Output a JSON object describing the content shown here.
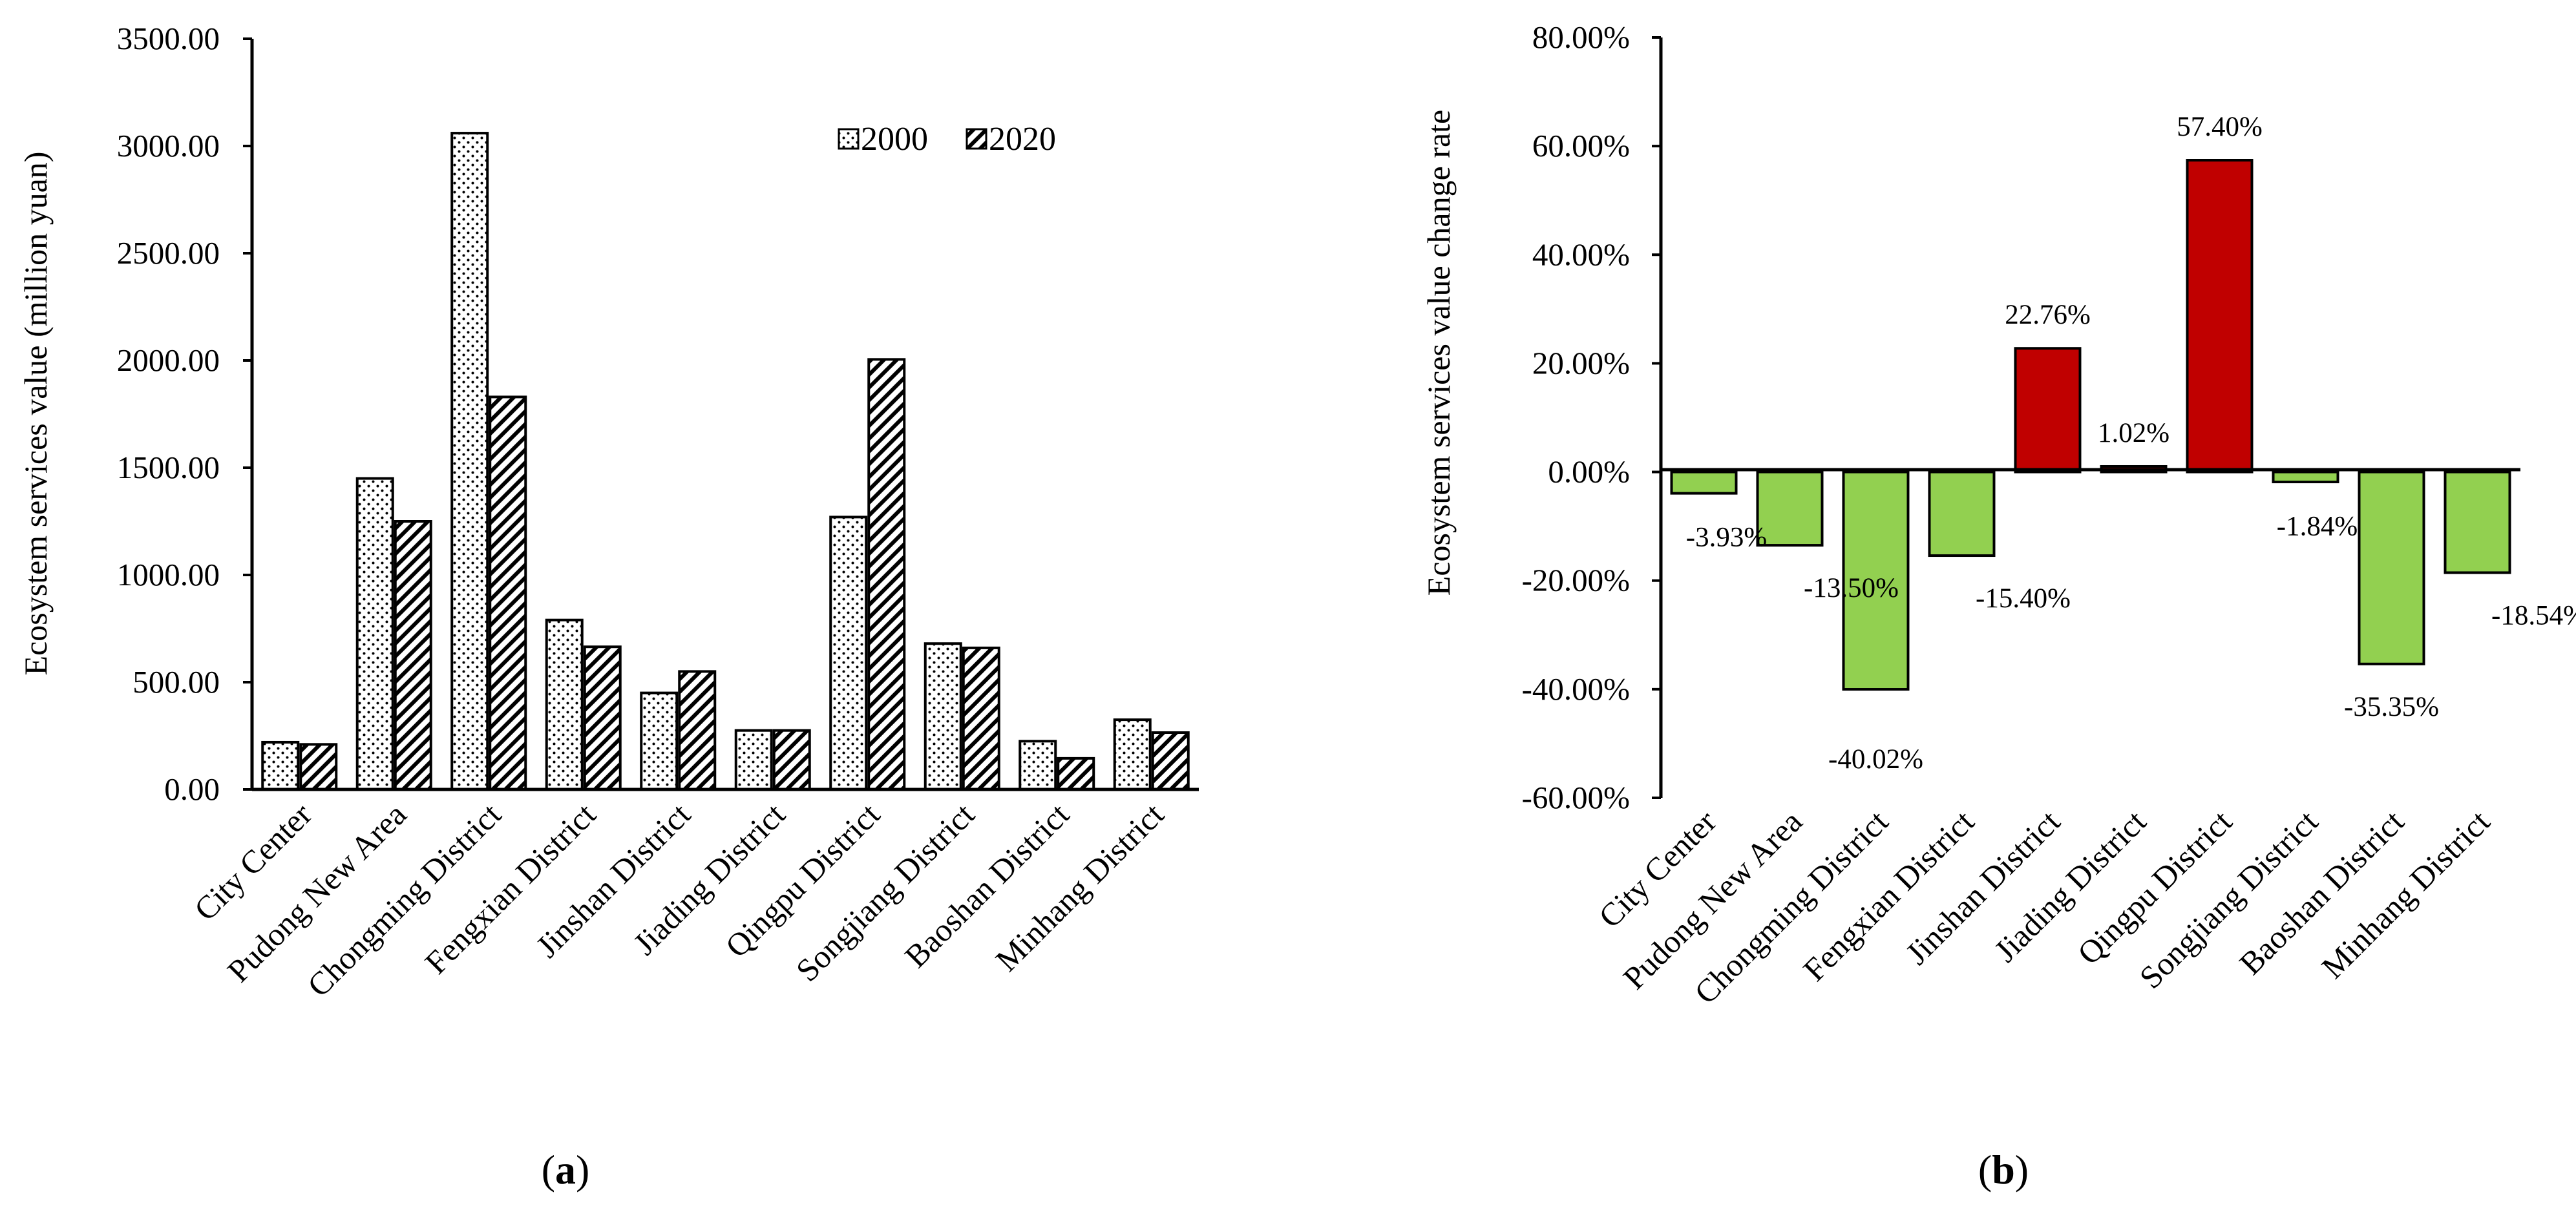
{
  "colors": {
    "positive": "#c00000",
    "negative": "#92d050",
    "axis": "#000000",
    "bar_bg": "#ffffff"
  },
  "chart_data": [
    {
      "type": "bar",
      "panel": "a",
      "panel_label": "a",
      "ylabel": "Ecosystem services value (million yuan)",
      "xlabel": "",
      "ylim": [
        0,
        3500
      ],
      "yticks": [
        "0.00",
        "500.00",
        "1000.00",
        "1500.00",
        "2000.00",
        "2500.00",
        "3000.00",
        "3500.00"
      ],
      "yticks_values": [
        0,
        500,
        1000,
        1500,
        2000,
        2500,
        3000,
        3500
      ],
      "grid": false,
      "legend_position": "top-right",
      "categories": [
        "City Center",
        "Pudong New Area",
        "Chongming District",
        "Fengxian District",
        "Jinshan District",
        "Jiading District",
        "Qingpu District",
        "Songjiang District",
        "Baoshan District",
        "Minhang District"
      ],
      "series": [
        {
          "name": "2000",
          "pattern": "dots",
          "values": [
            220,
            1450,
            3060,
            790,
            450,
            275,
            1270,
            680,
            225,
            325
          ]
        },
        {
          "name": "2020",
          "pattern": "diagonal",
          "values": [
            210,
            1250,
            1830,
            665,
            550,
            275,
            2005,
            660,
            145,
            265
          ]
        }
      ]
    },
    {
      "type": "bar",
      "panel": "b",
      "panel_label": "b",
      "ylabel": "Ecosystem services value change rate",
      "xlabel": "",
      "ylim": [
        -60,
        80
      ],
      "yticks": [
        "-60.00%",
        "-40.00%",
        "-20.00%",
        "0.00%",
        "20.00%",
        "40.00%",
        "60.00%",
        "80.00%"
      ],
      "yticks_values": [
        -60,
        -40,
        -20,
        0,
        20,
        40,
        60,
        80
      ],
      "grid": false,
      "categories": [
        "City Center",
        "Pudong New Area",
        "Chongming District",
        "Fengxian District",
        "Jinshan District",
        "Jiading District",
        "Qingpu District",
        "Songjiang District",
        "Baoshan District",
        "Minhang District"
      ],
      "values": [
        -3.93,
        -13.5,
        -40.02,
        -15.4,
        22.76,
        1.02,
        57.4,
        -1.84,
        -35.35,
        -18.54
      ],
      "labels": [
        "-3.93%",
        "-13.50%",
        "-40.02%",
        "-15.40%",
        "22.76%",
        "1.02%",
        "57.40%",
        "-1.84%",
        "-35.35%",
        "-18.54%"
      ]
    }
  ]
}
